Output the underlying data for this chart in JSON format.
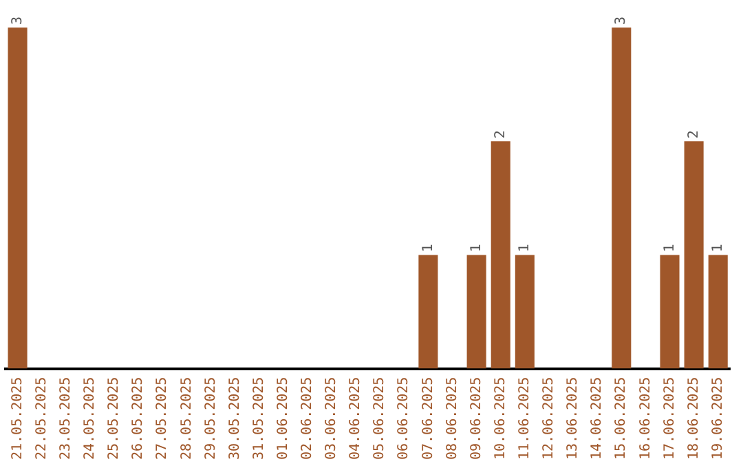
{
  "chart_data": {
    "type": "bar",
    "categories": [
      "21.05.2025",
      "22.05.2025",
      "23.05.2025",
      "24.05.2025",
      "25.05.2025",
      "26.05.2025",
      "27.05.2025",
      "28.05.2025",
      "29.05.2025",
      "30.05.2025",
      "31.05.2025",
      "01.06.2025",
      "02.06.2025",
      "03.06.2025",
      "04.06.2025",
      "05.06.2025",
      "06.06.2025",
      "07.06.2025",
      "08.06.2025",
      "09.06.2025",
      "10.06.2025",
      "11.06.2025",
      "12.06.2025",
      "13.06.2025",
      "14.06.2025",
      "15.06.2025",
      "16.06.2025",
      "17.06.2025",
      "18.06.2025",
      "19.06.2025"
    ],
    "values": [
      3,
      0,
      0,
      0,
      0,
      0,
      0,
      0,
      0,
      0,
      0,
      0,
      0,
      0,
      0,
      0,
      0,
      1,
      0,
      1,
      2,
      1,
      0,
      0,
      0,
      3,
      0,
      1,
      2,
      1
    ],
    "value_labels": [
      "3",
      null,
      null,
      null,
      null,
      null,
      null,
      null,
      null,
      null,
      null,
      null,
      null,
      null,
      null,
      null,
      null,
      "1",
      null,
      "1",
      "2",
      "1",
      null,
      null,
      null,
      "3",
      null,
      "1",
      "2",
      "1"
    ],
    "color": "#a0572a",
    "grid": false,
    "legend": false
  }
}
